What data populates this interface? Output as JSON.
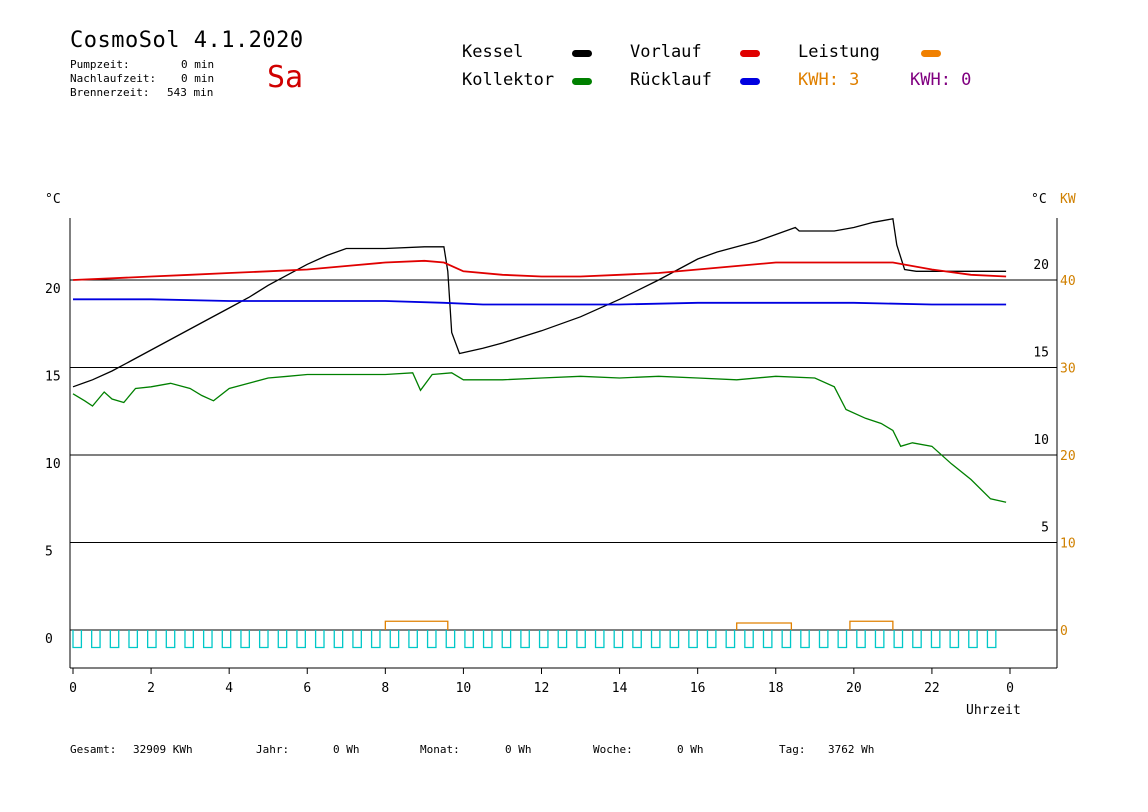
{
  "header": {
    "title": "CosmoSol 4.1.2020",
    "day": "Sa",
    "stats": [
      {
        "label": "Pumpzeit:",
        "value": "0 min"
      },
      {
        "label": "Nachlaufzeit:",
        "value": "0 min"
      },
      {
        "label": "Brennerzeit:",
        "value": "543 min"
      }
    ]
  },
  "legend": {
    "kessel": {
      "label": "Kessel",
      "color": "#000000"
    },
    "kollektor": {
      "label": "Kollektor",
      "color": "#008000"
    },
    "vorlauf": {
      "label": "Vorlauf",
      "color": "#e00000"
    },
    "ruecklauf": {
      "label": "Rücklauf",
      "color": "#0000e0"
    },
    "leistung": {
      "label": "Leistung",
      "color": "#f08000"
    },
    "kwh1": {
      "label": "KWH: 3",
      "color": "#e08000"
    },
    "kwh2": {
      "label": "KWH: 0",
      "color": "#800080"
    }
  },
  "footer": {
    "gesamt_label": "Gesamt:",
    "gesamt_value": "32909 KWh",
    "jahr_label": "Jahr:",
    "jahr_value": "0 Wh",
    "monat_label": "Monat:",
    "monat_value": "0 Wh",
    "woche_label": "Woche:",
    "woche_value": "0 Wh",
    "tag_label": "Tag:",
    "tag_value": "3762 Wh"
  },
  "chart_data": {
    "type": "line",
    "xlabel": "Uhrzeit",
    "ylabel_left": "°C",
    "ylabel_right_temp": "°C",
    "ylabel_right_power": "KW",
    "xlim": [
      0,
      24
    ],
    "ylim": [
      -2,
      23.5
    ],
    "x_ticks": [
      "0",
      "2",
      "4",
      "6",
      "8",
      "10",
      "12",
      "14",
      "16",
      "18",
      "20",
      "22",
      "0"
    ],
    "y_ticks_left": [
      "0",
      "5",
      "10",
      "15",
      "20"
    ],
    "y_ticks_right_temp": [
      "5",
      "10",
      "15",
      "20"
    ],
    "y_ticks_right_power": [
      "0",
      "10",
      "20",
      "30",
      "40"
    ],
    "grid_y": [
      0,
      5,
      10,
      15,
      20
    ],
    "series": [
      {
        "name": "Kessel",
        "color": "#000000",
        "points": [
          [
            0,
            13.9
          ],
          [
            0.5,
            14.3
          ],
          [
            1,
            14.8
          ],
          [
            1.5,
            15.4
          ],
          [
            2,
            16.0
          ],
          [
            2.5,
            16.6
          ],
          [
            3,
            17.2
          ],
          [
            3.5,
            17.8
          ],
          [
            4,
            18.4
          ],
          [
            4.5,
            19.0
          ],
          [
            5,
            19.7
          ],
          [
            5.5,
            20.3
          ],
          [
            6,
            20.9
          ],
          [
            6.5,
            21.4
          ],
          [
            7,
            21.8
          ],
          [
            8,
            21.8
          ],
          [
            9,
            21.9
          ],
          [
            9.5,
            21.9
          ],
          [
            9.6,
            20.5
          ],
          [
            9.7,
            17.0
          ],
          [
            9.9,
            15.8
          ],
          [
            10.5,
            16.1
          ],
          [
            11,
            16.4
          ],
          [
            12,
            17.1
          ],
          [
            13,
            17.9
          ],
          [
            14,
            18.9
          ],
          [
            15,
            20.0
          ],
          [
            15.5,
            20.6
          ],
          [
            16,
            21.2
          ],
          [
            16.5,
            21.6
          ],
          [
            17,
            21.9
          ],
          [
            17.5,
            22.2
          ],
          [
            18,
            22.6
          ],
          [
            18.5,
            23.0
          ],
          [
            18.6,
            22.8
          ],
          [
            19.5,
            22.8
          ],
          [
            20,
            23.0
          ],
          [
            20.5,
            23.3
          ],
          [
            21,
            23.5
          ],
          [
            21.1,
            22.0
          ],
          [
            21.3,
            20.6
          ],
          [
            21.6,
            20.5
          ],
          [
            22,
            20.5
          ],
          [
            23.9,
            20.5
          ]
        ]
      },
      {
        "name": "Kollektor",
        "color": "#008000",
        "points": [
          [
            0,
            13.5
          ],
          [
            0.3,
            13.1
          ],
          [
            0.5,
            12.8
          ],
          [
            0.8,
            13.6
          ],
          [
            1,
            13.2
          ],
          [
            1.3,
            13.0
          ],
          [
            1.6,
            13.8
          ],
          [
            2,
            13.9
          ],
          [
            2.5,
            14.1
          ],
          [
            3,
            13.8
          ],
          [
            3.3,
            13.4
          ],
          [
            3.6,
            13.1
          ],
          [
            4,
            13.8
          ],
          [
            4.5,
            14.1
          ],
          [
            5,
            14.4
          ],
          [
            5.5,
            14.5
          ],
          [
            6,
            14.6
          ],
          [
            7,
            14.6
          ],
          [
            8,
            14.6
          ],
          [
            8.7,
            14.7
          ],
          [
            8.9,
            13.7
          ],
          [
            9.2,
            14.6
          ],
          [
            9.7,
            14.7
          ],
          [
            10,
            14.3
          ],
          [
            11,
            14.3
          ],
          [
            12,
            14.4
          ],
          [
            13,
            14.5
          ],
          [
            14,
            14.4
          ],
          [
            15,
            14.5
          ],
          [
            16,
            14.4
          ],
          [
            17,
            14.3
          ],
          [
            18,
            14.5
          ],
          [
            19,
            14.4
          ],
          [
            19.5,
            13.9
          ],
          [
            19.8,
            12.6
          ],
          [
            20.3,
            12.1
          ],
          [
            20.7,
            11.8
          ],
          [
            21,
            11.4
          ],
          [
            21.2,
            10.5
          ],
          [
            21.5,
            10.7
          ],
          [
            22,
            10.5
          ],
          [
            22.5,
            9.5
          ],
          [
            23,
            8.6
          ],
          [
            23.5,
            7.5
          ],
          [
            23.9,
            7.3
          ]
        ]
      },
      {
        "name": "Vorlauf",
        "color": "#e00000",
        "points": [
          [
            0,
            20.0
          ],
          [
            1,
            20.1
          ],
          [
            2,
            20.2
          ],
          [
            3,
            20.3
          ],
          [
            4,
            20.4
          ],
          [
            5,
            20.5
          ],
          [
            6,
            20.6
          ],
          [
            7,
            20.8
          ],
          [
            8,
            21.0
          ],
          [
            9,
            21.1
          ],
          [
            9.5,
            21.0
          ],
          [
            10,
            20.5
          ],
          [
            11,
            20.3
          ],
          [
            12,
            20.2
          ],
          [
            13,
            20.2
          ],
          [
            14,
            20.3
          ],
          [
            15,
            20.4
          ],
          [
            16,
            20.6
          ],
          [
            17,
            20.8
          ],
          [
            18,
            21.0
          ],
          [
            19,
            21.0
          ],
          [
            20,
            21.0
          ],
          [
            21,
            21.0
          ],
          [
            22,
            20.6
          ],
          [
            23,
            20.3
          ],
          [
            23.9,
            20.2
          ]
        ]
      },
      {
        "name": "Rücklauf",
        "color": "#0000e0",
        "points": [
          [
            0,
            18.9
          ],
          [
            2,
            18.9
          ],
          [
            4,
            18.8
          ],
          [
            6,
            18.8
          ],
          [
            8,
            18.8
          ],
          [
            9.5,
            18.7
          ],
          [
            10.5,
            18.6
          ],
          [
            12,
            18.6
          ],
          [
            14,
            18.6
          ],
          [
            16,
            18.7
          ],
          [
            18,
            18.7
          ],
          [
            20,
            18.7
          ],
          [
            22,
            18.6
          ],
          [
            23.9,
            18.6
          ]
        ]
      }
    ],
    "leistung_kw": [
      {
        "start": 8.0,
        "end": 9.6,
        "value": 1.0
      },
      {
        "start": 17.0,
        "end": 18.4,
        "value": 0.8
      },
      {
        "start": 19.9,
        "end": 21.0,
        "value": 1.0
      }
    ],
    "pump_pulses": {
      "color": "#00c8c8",
      "start": 0.0,
      "end": 23.9,
      "count": 50,
      "low": -1.0
    }
  }
}
